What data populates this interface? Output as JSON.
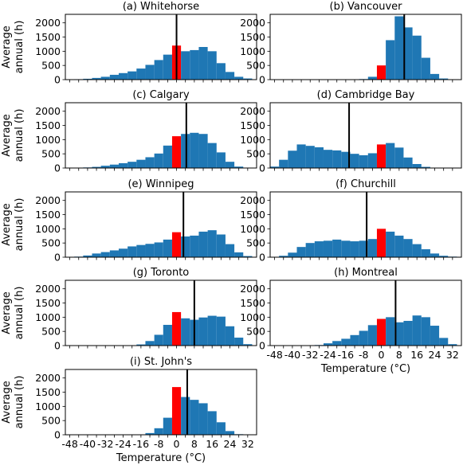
{
  "figure": {
    "xlabel": "Temperature (°C)",
    "ylabel_lines": [
      "Average",
      "annual (h)"
    ],
    "yticks": [
      0,
      500,
      1000,
      1500,
      2000
    ],
    "xticks": [
      -48,
      -40,
      -32,
      -24,
      -16,
      -8,
      0,
      8,
      16,
      24,
      32
    ],
    "bar_color": "#1f77b4",
    "highlight_color": "#ff0000",
    "line_color": "#000000"
  },
  "chart_data": [
    {
      "type": "bar",
      "title": "(a) Whitehorse",
      "xlim": [
        -50,
        36
      ],
      "ylim": [
        0,
        2300
      ],
      "bin_centers": [
        -48,
        -44,
        -40,
        -36,
        -32,
        -28,
        -24,
        -20,
        -16,
        -12,
        -8,
        -4,
        0,
        4,
        8,
        12,
        16,
        20,
        24,
        28,
        32
      ],
      "values": [
        10,
        15,
        30,
        60,
        100,
        170,
        230,
        290,
        390,
        520,
        690,
        880,
        1200,
        1000,
        1040,
        1150,
        1000,
        580,
        270,
        100,
        40
      ],
      "highlight_bin": 0,
      "mean_line": 0
    },
    {
      "type": "bar",
      "title": "(b) Vancouver",
      "xlim": [
        -50,
        36
      ],
      "ylim": [
        0,
        2300
      ],
      "bin_centers": [
        -48,
        -44,
        -40,
        -36,
        -32,
        -28,
        -24,
        -20,
        -16,
        -12,
        -8,
        -4,
        0,
        4,
        8,
        12,
        16,
        20,
        24,
        28,
        32
      ],
      "values": [
        0,
        0,
        0,
        0,
        0,
        0,
        0,
        0,
        0,
        0,
        20,
        100,
        500,
        1390,
        2230,
        1840,
        1550,
        770,
        200,
        40,
        0
      ],
      "highlight_bin": 0,
      "mean_line": 10.3
    },
    {
      "type": "bar",
      "title": "(c) Calgary",
      "xlim": [
        -50,
        36
      ],
      "ylim": [
        0,
        2300
      ],
      "bin_centers": [
        -48,
        -44,
        -40,
        -36,
        -32,
        -28,
        -24,
        -20,
        -16,
        -12,
        -8,
        -4,
        0,
        4,
        8,
        12,
        16,
        20,
        24,
        28,
        32
      ],
      "values": [
        5,
        10,
        20,
        40,
        80,
        120,
        170,
        220,
        290,
        380,
        510,
        790,
        1120,
        1200,
        1240,
        1200,
        880,
        550,
        220,
        50,
        10
      ],
      "highlight_bin": 0,
      "mean_line": 4.4
    },
    {
      "type": "bar",
      "title": "(d) Cambridge Bay",
      "xlim": [
        -50,
        36
      ],
      "ylim": [
        0,
        2300
      ],
      "bin_centers": [
        -48,
        -44,
        -40,
        -36,
        -32,
        -28,
        -24,
        -20,
        -16,
        -12,
        -8,
        -4,
        0,
        4,
        8,
        12,
        16,
        20,
        24,
        28,
        32
      ],
      "values": [
        50,
        290,
        610,
        830,
        780,
        730,
        640,
        620,
        570,
        500,
        450,
        520,
        830,
        880,
        720,
        370,
        140,
        40,
        10,
        0,
        0
      ],
      "highlight_bin": 0,
      "mean_line": -14.5
    },
    {
      "type": "bar",
      "title": "(e) Winnipeg",
      "xlim": [
        -50,
        36
      ],
      "ylim": [
        0,
        2300
      ],
      "bin_centers": [
        -48,
        -44,
        -40,
        -36,
        -32,
        -28,
        -24,
        -20,
        -16,
        -12,
        -8,
        -4,
        0,
        4,
        8,
        12,
        16,
        20,
        24,
        28,
        32
      ],
      "values": [
        10,
        20,
        60,
        130,
        180,
        240,
        300,
        380,
        430,
        470,
        520,
        620,
        880,
        730,
        760,
        900,
        950,
        800,
        460,
        170,
        40
      ],
      "highlight_bin": 0,
      "mean_line": 3.1
    },
    {
      "type": "bar",
      "title": "(f) Churchill",
      "xlim": [
        -50,
        36
      ],
      "ylim": [
        0,
        2300
      ],
      "bin_centers": [
        -48,
        -44,
        -40,
        -36,
        -32,
        -28,
        -24,
        -20,
        -16,
        -12,
        -8,
        -4,
        0,
        4,
        8,
        12,
        16,
        20,
        24,
        28,
        32
      ],
      "values": [
        10,
        50,
        160,
        360,
        500,
        560,
        580,
        620,
        580,
        560,
        580,
        640,
        1000,
        900,
        760,
        640,
        460,
        280,
        130,
        50,
        20
      ],
      "highlight_bin": 0,
      "mean_line": -6.6
    },
    {
      "type": "bar",
      "title": "(g) Toronto",
      "xlim": [
        -50,
        36
      ],
      "ylim": [
        0,
        2300
      ],
      "bin_centers": [
        -48,
        -44,
        -40,
        -36,
        -32,
        -28,
        -24,
        -20,
        -16,
        -12,
        -8,
        -4,
        0,
        4,
        8,
        12,
        16,
        20,
        24,
        28,
        32
      ],
      "values": [
        0,
        0,
        0,
        0,
        0,
        0,
        0,
        10,
        40,
        160,
        380,
        730,
        1180,
        960,
        910,
        990,
        1050,
        1020,
        680,
        280,
        50
      ],
      "highlight_bin": 0,
      "mean_line": 8.0
    },
    {
      "type": "bar",
      "title": "(h) Montreal",
      "xlim": [
        -50,
        36
      ],
      "ylim": [
        0,
        2300
      ],
      "bin_centers": [
        -48,
        -44,
        -40,
        -36,
        -32,
        -28,
        -24,
        -20,
        -16,
        -12,
        -8,
        -4,
        0,
        4,
        8,
        12,
        16,
        20,
        24,
        28,
        32
      ],
      "values": [
        0,
        0,
        0,
        0,
        5,
        20,
        80,
        160,
        240,
        370,
        520,
        720,
        940,
        1000,
        820,
        870,
        1060,
        1000,
        700,
        270,
        50
      ],
      "highlight_bin": 0,
      "mean_line": 6.4
    },
    {
      "type": "bar",
      "title": "(i) St. John's",
      "xlim": [
        -50,
        36
      ],
      "ylim": [
        0,
        2300
      ],
      "bin_centers": [
        -48,
        -44,
        -40,
        -36,
        -32,
        -28,
        -24,
        -20,
        -16,
        -12,
        -8,
        -4,
        0,
        4,
        8,
        12,
        16,
        20,
        24,
        28,
        32
      ],
      "values": [
        0,
        0,
        0,
        0,
        0,
        0,
        0,
        0,
        10,
        60,
        230,
        600,
        1680,
        1330,
        1230,
        1110,
        830,
        440,
        130,
        20,
        0
      ],
      "highlight_bin": 0,
      "mean_line": 4.8
    }
  ]
}
